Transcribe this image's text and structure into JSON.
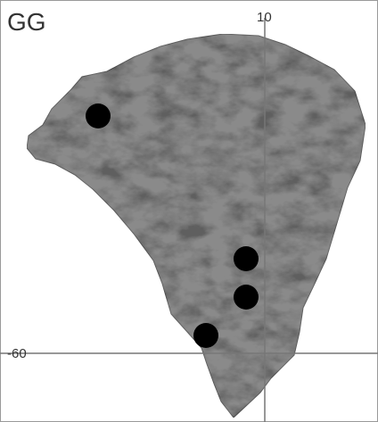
{
  "map": {
    "label": "GG",
    "grid_labels": {
      "vertical": "10",
      "horizontal": "-60"
    }
  }
}
